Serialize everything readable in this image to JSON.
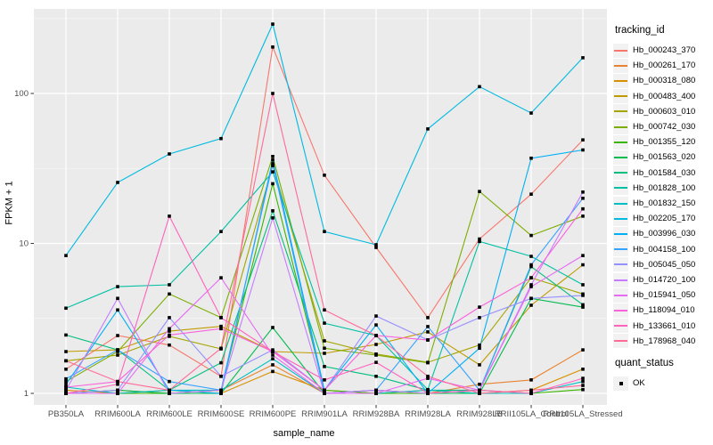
{
  "chart_data": {
    "type": "line",
    "title": "",
    "xlabel": "sample_name",
    "ylabel": "FPKM + 1",
    "y_scale": "log10",
    "y_ticks": [
      1,
      10,
      100
    ],
    "y_minor_ticks": [
      3.162,
      31.62,
      316.2
    ],
    "ylim": [
      0.95,
      400
    ],
    "grid": "on",
    "legend_position": "right",
    "marker": "filled-square",
    "marker_color": "#000000",
    "categories": [
      "PB350LA",
      "RRIM600LA",
      "RRIM600LE",
      "RRIM600SE",
      "RRIM600PE",
      "RRIM901LA",
      "RRIM928BA",
      "RRIM928LA",
      "RRIM928LB",
      "RRII105LA_Control",
      "RRII105LA_Stressed"
    ],
    "legend": {
      "title": "tracking_id"
    },
    "quant_legend": {
      "title": "quant_status",
      "items": [
        {
          "label": "OK",
          "marker": "filled-square"
        }
      ]
    },
    "style": {
      "panel_bg": "#EBEBEB",
      "grid_major": "#FFFFFF",
      "grid_minor": "#F7F7F7",
      "axis_text": "#4D4D4D",
      "tick_mark": "#333333",
      "legend_key_bg": "#F2F2F2"
    },
    "series": [
      {
        "name": "Hb_000243_370",
        "color": "#F8766D",
        "values": [
          1.45,
          2.43,
          2.1,
          1.3,
          204,
          28.5,
          9.4,
          3.2,
          10.7,
          21.3,
          49
        ]
      },
      {
        "name": "Hb_000261_170",
        "color": "#EA8331",
        "values": [
          1.0,
          1.05,
          1.0,
          1.05,
          1.55,
          1.0,
          1.05,
          1.0,
          1.15,
          1.23,
          1.95
        ]
      },
      {
        "name": "Hb_000318_080",
        "color": "#D89000",
        "values": [
          1.05,
          1.0,
          1.05,
          1.0,
          1.4,
          1.05,
          1.0,
          1.05,
          1.0,
          1.05,
          1.45
        ]
      },
      {
        "name": "Hb_000483_400",
        "color": "#C09B00",
        "values": [
          1.9,
          1.95,
          2.6,
          2.8,
          1.9,
          1.85,
          2.12,
          2.57,
          1.55,
          3.87,
          7.2
        ]
      },
      {
        "name": "Hb_000603_010",
        "color": "#A3A500",
        "values": [
          1.65,
          1.8,
          2.4,
          1.98,
          33,
          2.24,
          1.83,
          1.61,
          2.1,
          5.9,
          4.6
        ]
      },
      {
        "name": "Hb_000742_030",
        "color": "#7CAE00",
        "values": [
          1.2,
          1.9,
          4.6,
          3.2,
          38,
          2.0,
          1.8,
          1.6,
          22.2,
          11.3,
          15.2
        ]
      },
      {
        "name": "Hb_001355_120",
        "color": "#39B600",
        "values": [
          1.0,
          1.0,
          1.0,
          1.05,
          25,
          1.05,
          1.0,
          1.0,
          1.05,
          1.0,
          1.06
        ]
      },
      {
        "name": "Hb_001563_020",
        "color": "#00BB4E",
        "values": [
          1.0,
          1.05,
          1.0,
          1.0,
          2.75,
          1.0,
          1.05,
          1.0,
          1.0,
          4.3,
          3.76
        ]
      },
      {
        "name": "Hb_001584_030",
        "color": "#00BF7D",
        "values": [
          2.45,
          1.95,
          1.05,
          1.6,
          16.5,
          1.51,
          1.3,
          1.05,
          1.05,
          7.0,
          3.9
        ]
      },
      {
        "name": "Hb_001828_100",
        "color": "#00C1A3",
        "values": [
          3.7,
          5.15,
          5.3,
          12,
          30,
          2.94,
          2.43,
          1.06,
          10.3,
          8.2,
          5.3
        ]
      },
      {
        "name": "Hb_001832_150",
        "color": "#00BFC4",
        "values": [
          1.1,
          1.0,
          1.05,
          1.05,
          1.7,
          1.0,
          1.0,
          1.05,
          1.0,
          1.0,
          1.2
        ]
      },
      {
        "name": "Hb_002205_170",
        "color": "#00BAE0",
        "values": [
          8.3,
          25.5,
          39.5,
          50,
          290,
          12,
          9.8,
          58,
          111,
          74,
          173
        ]
      },
      {
        "name": "Hb_003996_030",
        "color": "#00B0F6",
        "values": [
          1.15,
          3.6,
          1.05,
          1.0,
          36,
          1.05,
          2.86,
          1.0,
          2.0,
          37,
          42
        ]
      },
      {
        "name": "Hb_004158_100",
        "color": "#35A2FF",
        "values": [
          1.25,
          1.95,
          1.2,
          1.05,
          34,
          1.0,
          1.05,
          2.79,
          1.05,
          7.2,
          20
        ]
      },
      {
        "name": "Hb_005045_050",
        "color": "#9590FF",
        "values": [
          1.0,
          1.05,
          3.2,
          1.3,
          1.95,
          1.05,
          3.28,
          2.27,
          3.2,
          4.3,
          4.5
        ]
      },
      {
        "name": "Hb_014720_100",
        "color": "#C77CFF",
        "values": [
          1.05,
          4.3,
          1.0,
          1.05,
          14.8,
          1.0,
          1.05,
          1.0,
          1.05,
          5.3,
          22
        ]
      },
      {
        "name": "Hb_015941_050",
        "color": "#E76BF3",
        "values": [
          1.0,
          1.0,
          2.7,
          5.9,
          1.8,
          1.0,
          1.0,
          1.26,
          1.05,
          5.15,
          8.3
        ]
      },
      {
        "name": "Hb_118094_010",
        "color": "#FA62DB",
        "values": [
          1.1,
          1.2,
          2.45,
          2.7,
          1.9,
          1.05,
          2.43,
          2.27,
          3.76,
          5.9,
          17
        ]
      },
      {
        "name": "Hb_133661_010",
        "color": "#FF62BC",
        "values": [
          1.0,
          1.15,
          15.2,
          3.2,
          1.9,
          1.23,
          1.61,
          1.0,
          1.05,
          1.0,
          1.26
        ]
      },
      {
        "name": "Hb_178968_040",
        "color": "#FF6A98",
        "values": [
          1.65,
          1.2,
          1.05,
          2.0,
          100,
          3.6,
          2.43,
          1.3,
          1.0,
          1.05,
          1.13
        ]
      }
    ]
  }
}
